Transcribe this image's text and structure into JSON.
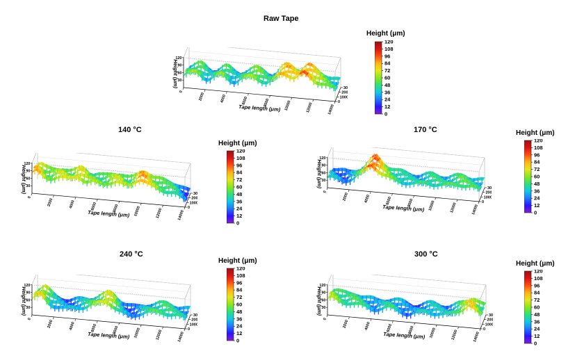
{
  "colorbar": {
    "title": "Height (μm)",
    "ticks": [
      "0",
      "12",
      "24",
      "36",
      "48",
      "60",
      "72",
      "84",
      "96",
      "108",
      "120"
    ],
    "colors": [
      "#8a1ec8",
      "#2a14ff",
      "#1f78ff",
      "#13c8e6",
      "#2ee07a",
      "#8ae61e",
      "#e6e61e",
      "#ffb414",
      "#ff5014",
      "#dc1414",
      "#961414"
    ]
  },
  "chart_data": [
    {
      "type": "surface3d",
      "title": "Raw Tape",
      "xlabel": "Tape length (μm)",
      "ylabel": "Tape length (μm)",
      "zlabel": "Height (μm)",
      "xlim": [
        0,
        14000
      ],
      "x_ticks": [
        "0",
        "2000",
        "4000",
        "6000",
        "8000",
        "10000",
        "12000",
        "14000"
      ],
      "y_ticks": [
        "0",
        "1000",
        "2000",
        "3000"
      ],
      "z_ticks": [
        "30",
        "60",
        "90",
        "120"
      ],
      "colorbar_range": [
        0,
        120
      ],
      "height_profile": [
        46,
        52,
        58,
        62,
        56,
        44,
        38,
        42,
        52,
        60,
        58,
        48,
        40,
        38,
        46,
        54,
        60,
        64,
        62,
        56,
        48,
        44,
        52,
        70,
        84,
        90,
        86,
        78,
        74,
        88,
        96,
        90,
        80,
        70,
        64,
        58,
        52,
        48,
        44
      ]
    },
    {
      "type": "surface3d",
      "title": "140 °C",
      "xlabel": "Tape length (μm)",
      "ylabel": "Tape length (μm)",
      "zlabel": "Height (μm)",
      "xlim": [
        0,
        14000
      ],
      "x_ticks": [
        "0",
        "2000",
        "4000",
        "6000",
        "8000",
        "10000",
        "12000",
        "14000"
      ],
      "y_ticks": [
        "0",
        "1000",
        "2000",
        "3000"
      ],
      "z_ticks": [
        "30",
        "60",
        "90",
        "120"
      ],
      "colorbar_range": [
        0,
        120
      ],
      "height_profile": [
        82,
        86,
        72,
        62,
        60,
        64,
        70,
        72,
        66,
        64,
        70,
        80,
        76,
        64,
        60,
        62,
        58,
        56,
        60,
        66,
        70,
        72,
        64,
        58,
        60,
        72,
        88,
        92,
        82,
        70,
        64,
        60,
        56,
        54,
        52,
        48,
        40,
        30,
        22
      ]
    },
    {
      "type": "surface3d",
      "title": "170 °C",
      "xlabel": "Tape length (μm)",
      "ylabel": "Tape length (μm)",
      "zlabel": "Height (μm)",
      "xlim": [
        0,
        14000
      ],
      "x_ticks": [
        "0",
        "2000",
        "4000",
        "6000",
        "8000",
        "10000",
        "12000",
        "14000"
      ],
      "y_ticks": [
        "0",
        "1000",
        "2000",
        "3000"
      ],
      "z_ticks": [
        "30",
        "60",
        "90",
        "120"
      ],
      "colorbar_range": [
        0,
        120
      ],
      "height_profile": [
        40,
        36,
        32,
        30,
        28,
        34,
        40,
        48,
        60,
        76,
        94,
        104,
        92,
        78,
        66,
        58,
        52,
        50,
        48,
        46,
        44,
        42,
        40,
        44,
        48,
        52,
        50,
        48,
        46,
        44,
        48,
        52,
        56,
        58,
        54,
        50,
        48,
        46,
        44
      ]
    },
    {
      "type": "surface3d",
      "title": "240 °C",
      "xlabel": "Tape length (μm)",
      "ylabel": "Tape length (μm)",
      "zlabel": "Height (μm)",
      "xlim": [
        0,
        14000
      ],
      "x_ticks": [
        "0",
        "2000",
        "4000",
        "6000",
        "8000",
        "10000",
        "12000",
        "14000"
      ],
      "y_ticks": [
        "0",
        "1000",
        "2000",
        "3000"
      ],
      "z_ticks": [
        "30",
        "60",
        "90",
        "120"
      ],
      "colorbar_range": [
        0,
        120
      ],
      "height_profile": [
        62,
        72,
        78,
        64,
        50,
        42,
        38,
        34,
        30,
        32,
        36,
        40,
        44,
        46,
        50,
        56,
        62,
        70,
        78,
        74,
        60,
        46,
        36,
        30,
        28,
        30,
        36,
        40,
        44,
        46,
        50,
        52,
        54,
        52,
        48,
        44,
        42,
        40,
        38
      ]
    },
    {
      "type": "surface3d",
      "title": "300 °C",
      "xlabel": "Tape length (μm)",
      "ylabel": "Tape length (μm)",
      "zlabel": "Height (μm)",
      "xlim": [
        0,
        14000
      ],
      "x_ticks": [
        "0",
        "2000",
        "4000",
        "6000",
        "8000",
        "10000",
        "12000",
        "14000"
      ],
      "y_ticks": [
        "0",
        "1000",
        "2000",
        "3000"
      ],
      "z_ticks": [
        "30",
        "60",
        "90",
        "120"
      ],
      "colorbar_range": [
        0,
        120
      ],
      "height_profile": [
        64,
        66,
        58,
        52,
        50,
        52,
        54,
        50,
        46,
        42,
        38,
        34,
        36,
        40,
        44,
        46,
        44,
        40,
        36,
        32,
        28,
        30,
        34,
        38,
        42,
        44,
        42,
        40,
        38,
        36,
        40,
        48,
        56,
        64,
        74,
        84,
        72,
        60,
        52
      ]
    }
  ]
}
